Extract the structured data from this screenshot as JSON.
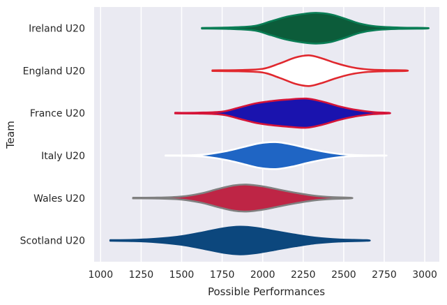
{
  "chart_data": {
    "type": "violin",
    "orientation": "horizontal",
    "title": "",
    "xlabel": "Possible Performances",
    "ylabel": "Team",
    "xlim": [
      960,
      3090
    ],
    "x_ticks": [
      1000,
      1250,
      1500,
      1750,
      2000,
      2250,
      2500,
      2750,
      3000
    ],
    "grid": true,
    "background": "#EAEAF2",
    "series": [
      {
        "name": "Ireland U20",
        "fill": "#0C5C3A",
        "stroke": "#0A7D55",
        "range": [
          1625,
          3005
        ],
        "profile": [
          [
            1625,
            0.02
          ],
          [
            1800,
            0.05
          ],
          [
            1950,
            0.15
          ],
          [
            2050,
            0.45
          ],
          [
            2150,
            0.75
          ],
          [
            2250,
            0.93
          ],
          [
            2330,
            1.0
          ],
          [
            2420,
            0.9
          ],
          [
            2500,
            0.65
          ],
          [
            2600,
            0.3
          ],
          [
            2700,
            0.12
          ],
          [
            2850,
            0.04
          ],
          [
            3005,
            0.02
          ]
        ]
      },
      {
        "name": "England U20",
        "fill": "#FFFFFF",
        "stroke": "#E0282E",
        "range": [
          1690,
          2880
        ],
        "profile": [
          [
            1690,
            0.02
          ],
          [
            1850,
            0.04
          ],
          [
            2000,
            0.12
          ],
          [
            2100,
            0.45
          ],
          [
            2200,
            0.85
          ],
          [
            2285,
            1.0
          ],
          [
            2360,
            0.82
          ],
          [
            2450,
            0.5
          ],
          [
            2550,
            0.22
          ],
          [
            2650,
            0.08
          ],
          [
            2750,
            0.04
          ],
          [
            2880,
            0.02
          ]
        ]
      },
      {
        "name": "France U20",
        "fill": "#1A13AE",
        "stroke": "#D51438",
        "range": [
          1460,
          2775
        ],
        "profile": [
          [
            1460,
            0.02
          ],
          [
            1600,
            0.03
          ],
          [
            1750,
            0.1
          ],
          [
            1850,
            0.35
          ],
          [
            1950,
            0.62
          ],
          [
            2050,
            0.78
          ],
          [
            2150,
            0.88
          ],
          [
            2270,
            0.95
          ],
          [
            2370,
            0.75
          ],
          [
            2470,
            0.45
          ],
          [
            2570,
            0.22
          ],
          [
            2680,
            0.07
          ],
          [
            2775,
            0.02
          ]
        ]
      },
      {
        "name": "Italy U20",
        "fill": "#1F65C4",
        "stroke": "#FFFFFF",
        "range": [
          1400,
          2750
        ],
        "profile": [
          [
            1400,
            0.01
          ],
          [
            1550,
            0.02
          ],
          [
            1650,
            0.08
          ],
          [
            1780,
            0.3
          ],
          [
            1880,
            0.55
          ],
          [
            1980,
            0.8
          ],
          [
            2080,
            0.88
          ],
          [
            2180,
            0.72
          ],
          [
            2300,
            0.42
          ],
          [
            2420,
            0.18
          ],
          [
            2520,
            0.06
          ],
          [
            2630,
            0.02
          ],
          [
            2750,
            0.01
          ]
        ]
      },
      {
        "name": "Wales U20",
        "fill": "#BE2545",
        "stroke": "#808080",
        "range": [
          1200,
          2540
        ],
        "profile": [
          [
            1200,
            0.02
          ],
          [
            1350,
            0.03
          ],
          [
            1500,
            0.1
          ],
          [
            1620,
            0.3
          ],
          [
            1720,
            0.58
          ],
          [
            1820,
            0.82
          ],
          [
            1900,
            0.88
          ],
          [
            2000,
            0.76
          ],
          [
            2100,
            0.55
          ],
          [
            2200,
            0.35
          ],
          [
            2320,
            0.15
          ],
          [
            2430,
            0.06
          ],
          [
            2540,
            0.02
          ]
        ]
      },
      {
        "name": "Scotland U20",
        "fill": "#0C477D",
        "stroke": "#0C477D",
        "range": [
          1060,
          2640
        ],
        "profile": [
          [
            1060,
            0.02
          ],
          [
            1200,
            0.04
          ],
          [
            1350,
            0.12
          ],
          [
            1500,
            0.28
          ],
          [
            1640,
            0.55
          ],
          [
            1760,
            0.8
          ],
          [
            1860,
            0.9
          ],
          [
            1960,
            0.82
          ],
          [
            2080,
            0.6
          ],
          [
            2200,
            0.38
          ],
          [
            2330,
            0.18
          ],
          [
            2470,
            0.07
          ],
          [
            2640,
            0.02
          ]
        ]
      }
    ]
  }
}
